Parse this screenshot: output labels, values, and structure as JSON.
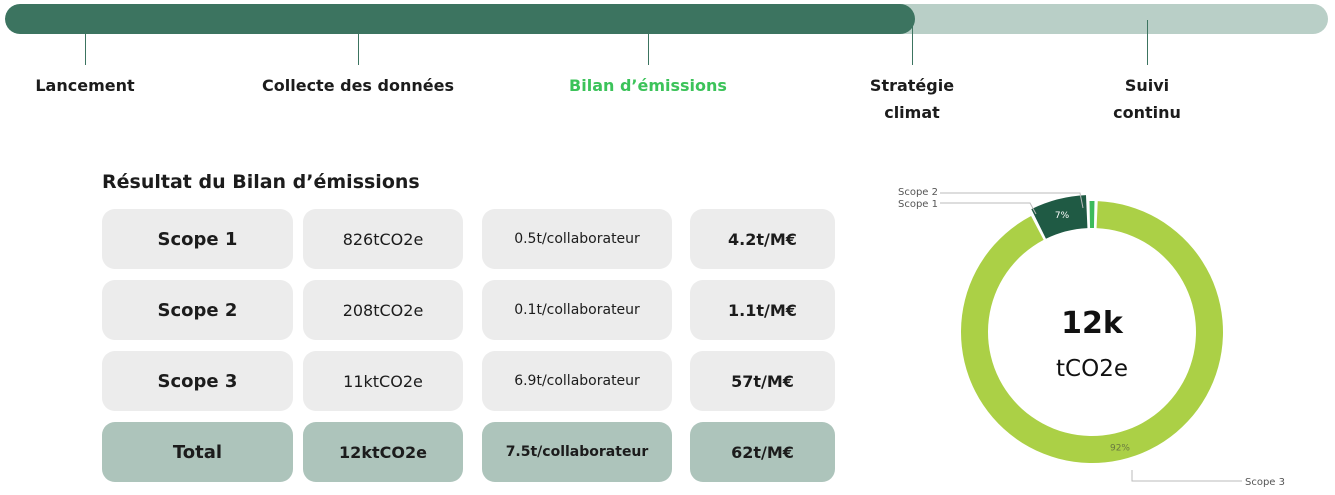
{
  "progress": {
    "steps": [
      [
        "Lancement"
      ],
      [
        "Collecte des données"
      ],
      [
        "Bilan d’émissions"
      ],
      [
        "Stratégie",
        "climat"
      ],
      [
        "Suivi",
        "continu"
      ]
    ],
    "current_step": 2
  },
  "table": {
    "title": "Résultat du Bilan d’émissions",
    "rows": [
      [
        "Scope 1",
        "826tCO2e",
        "0.5t/collaborateur",
        "4.2t/M€"
      ],
      [
        "Scope 2",
        "208tCO2e",
        "0.1t/collaborateur",
        "1.1t/M€"
      ],
      [
        "Scope 3",
        "11ktCO2e",
        "6.9t/collaborateur",
        "57t/M€"
      ],
      [
        "Total",
        "12ktCO2e",
        "7.5t/collaborateur",
        "62t/M€"
      ]
    ]
  },
  "chart_data": {
    "type": "donut",
    "center_value": "12k",
    "center_unit": "tCO2e",
    "categories": [
      "Scope 1",
      "Scope 2",
      "Scope 3"
    ],
    "values": [
      7,
      1,
      92
    ],
    "value_labels": [
      "7%",
      null,
      "92%"
    ],
    "colors": [
      "#1f5a44",
      "#3dba5c",
      "#abd046"
    ]
  }
}
